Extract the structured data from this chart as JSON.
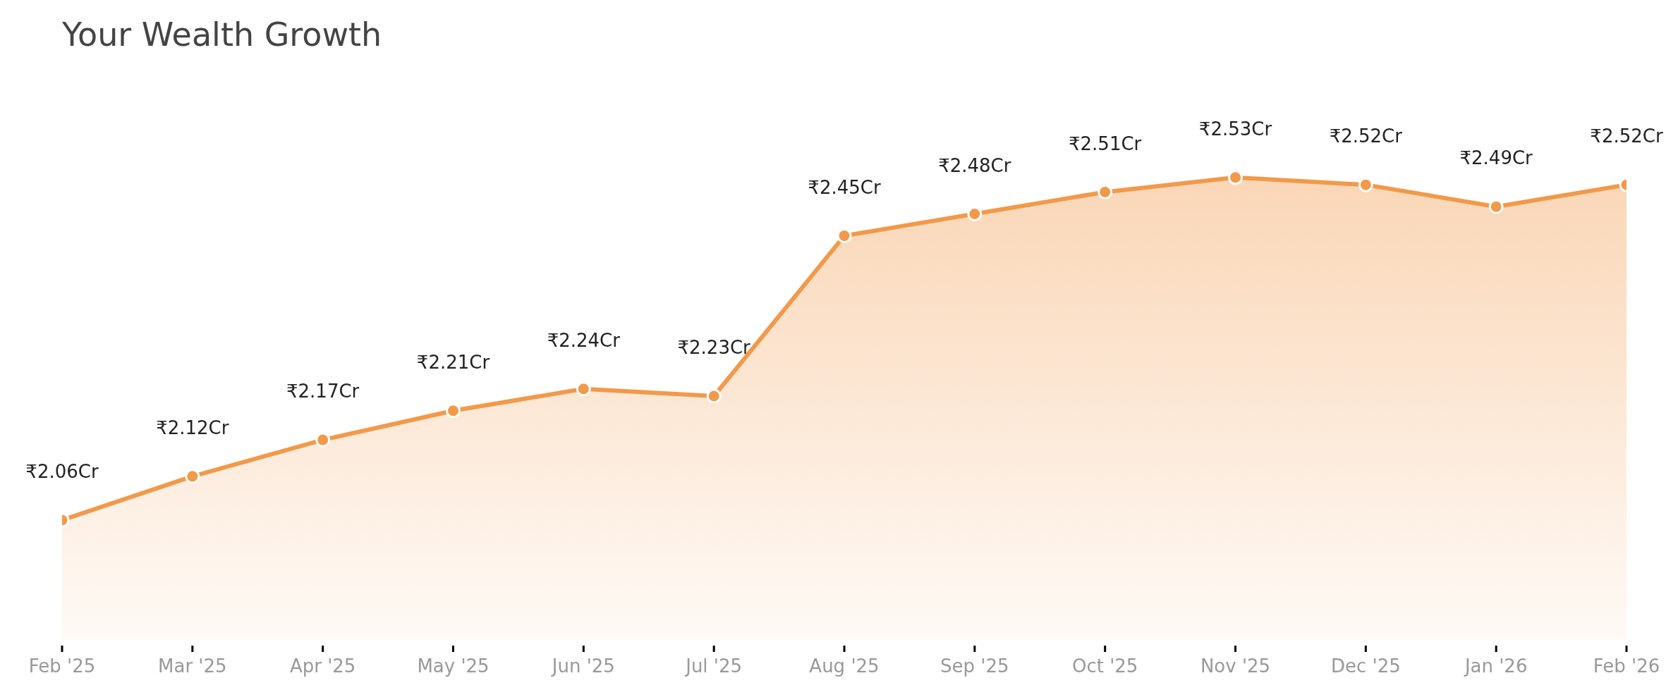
{
  "chart_data": {
    "type": "area",
    "title": "Your Wealth Growth",
    "categories": [
      "Feb '25",
      "Mar '25",
      "Apr '25",
      "May '25",
      "Jun '25",
      "Jul '25",
      "Aug '25",
      "Sep '25",
      "Oct '25",
      "Nov '25",
      "Dec '25",
      "Jan '26",
      "Feb '26"
    ],
    "series": [
      {
        "color": "#f2994a",
        "values": [
          2.06,
          2.12,
          2.17,
          2.21,
          2.24,
          2.23,
          2.45,
          2.48,
          2.51,
          2.53,
          2.52,
          2.49,
          2.52
        ],
        "value_labels": [
          "₹2.06Cr",
          "₹2.12Cr",
          "₹2.17Cr",
          "₹2.21Cr",
          "₹2.24Cr",
          "₹2.23Cr",
          "₹2.45Cr",
          "₹2.48Cr",
          "₹2.51Cr",
          "₹2.53Cr",
          "₹2.52Cr",
          "₹2.49Cr",
          "₹2.52Cr"
        ]
      }
    ],
    "marker": "circle",
    "grid": false,
    "legend": false
  }
}
